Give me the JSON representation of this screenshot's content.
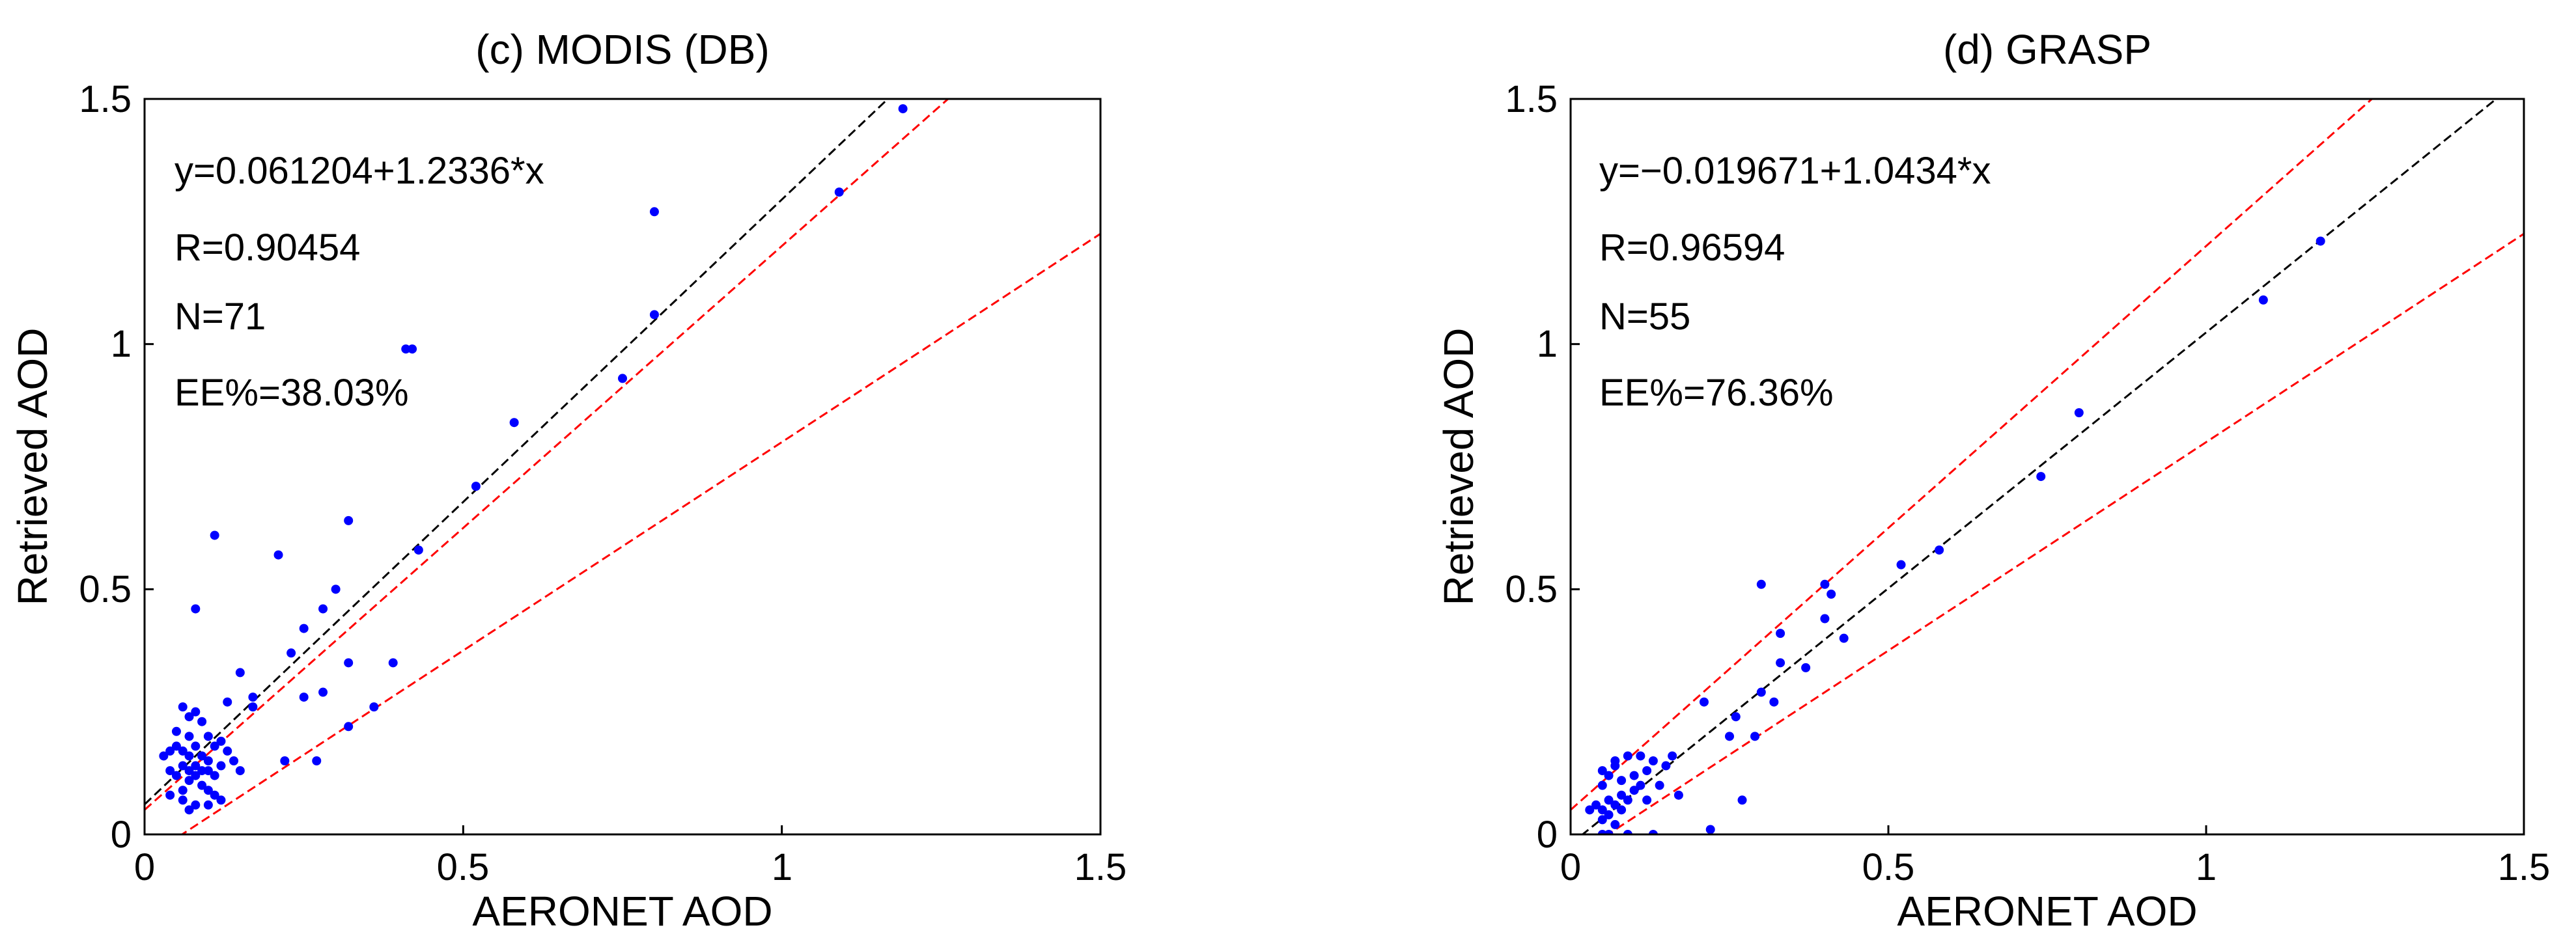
{
  "colors": {
    "points": "#0000ff",
    "fit_line": "#000000",
    "ee_lines": "#ff0000",
    "axes": "#000000",
    "background": "#ffffff"
  },
  "chart_data": [
    {
      "type": "scatter",
      "title": "(c) MODIS (DB)",
      "xlabel": "AERONET AOD",
      "ylabel": "Retrieved AOD",
      "xlim": [
        0,
        1.5
      ],
      "ylim": [
        0,
        1.5
      ],
      "xticks": [
        "0",
        "0.5",
        "1",
        "1.5"
      ],
      "yticks": [
        "0",
        "0.5",
        "1",
        "1.5"
      ],
      "annotations": [
        "y=0.061204+1.2336*x",
        "R=0.90454",
        "N=71",
        "EE%=38.03%"
      ],
      "fit": {
        "intercept": 0.061204,
        "slope": 1.2336
      },
      "ee_upper": {
        "intercept": 0.05,
        "slope": 1.15
      },
      "ee_lower": {
        "intercept": -0.05,
        "slope": 0.85
      },
      "points": [
        [
          1.19,
          1.48
        ],
        [
          1.09,
          1.31
        ],
        [
          0.8,
          1.27
        ],
        [
          0.8,
          1.06
        ],
        [
          0.41,
          0.99
        ],
        [
          0.42,
          0.99
        ],
        [
          0.75,
          0.93
        ],
        [
          0.58,
          0.84
        ],
        [
          0.52,
          0.71
        ],
        [
          0.11,
          0.61
        ],
        [
          0.32,
          0.64
        ],
        [
          0.21,
          0.57
        ],
        [
          0.43,
          0.58
        ],
        [
          0.3,
          0.5
        ],
        [
          0.28,
          0.46
        ],
        [
          0.25,
          0.42
        ],
        [
          0.08,
          0.46
        ],
        [
          0.23,
          0.37
        ],
        [
          0.32,
          0.35
        ],
        [
          0.39,
          0.35
        ],
        [
          0.15,
          0.33
        ],
        [
          0.17,
          0.28
        ],
        [
          0.17,
          0.26
        ],
        [
          0.28,
          0.29
        ],
        [
          0.25,
          0.28
        ],
        [
          0.36,
          0.26
        ],
        [
          0.32,
          0.22
        ],
        [
          0.13,
          0.27
        ],
        [
          0.06,
          0.26
        ],
        [
          0.08,
          0.25
        ],
        [
          0.07,
          0.24
        ],
        [
          0.09,
          0.23
        ],
        [
          0.05,
          0.21
        ],
        [
          0.07,
          0.2
        ],
        [
          0.1,
          0.2
        ],
        [
          0.12,
          0.19
        ],
        [
          0.05,
          0.18
        ],
        [
          0.08,
          0.18
        ],
        [
          0.11,
          0.18
        ],
        [
          0.13,
          0.17
        ],
        [
          0.04,
          0.17
        ],
        [
          0.06,
          0.17
        ],
        [
          0.07,
          0.16
        ],
        [
          0.09,
          0.16
        ],
        [
          0.03,
          0.16
        ],
        [
          0.1,
          0.15
        ],
        [
          0.14,
          0.15
        ],
        [
          0.22,
          0.15
        ],
        [
          0.27,
          0.15
        ],
        [
          0.06,
          0.14
        ],
        [
          0.08,
          0.14
        ],
        [
          0.12,
          0.14
        ],
        [
          0.04,
          0.13
        ],
        [
          0.07,
          0.13
        ],
        [
          0.09,
          0.13
        ],
        [
          0.1,
          0.13
        ],
        [
          0.15,
          0.13
        ],
        [
          0.05,
          0.12
        ],
        [
          0.08,
          0.12
        ],
        [
          0.11,
          0.12
        ],
        [
          0.07,
          0.11
        ],
        [
          0.09,
          0.1
        ],
        [
          0.1,
          0.09
        ],
        [
          0.06,
          0.09
        ],
        [
          0.11,
          0.08
        ],
        [
          0.04,
          0.08
        ],
        [
          0.12,
          0.07
        ],
        [
          0.06,
          0.07
        ],
        [
          0.08,
          0.06
        ],
        [
          0.1,
          0.06
        ],
        [
          0.07,
          0.05
        ]
      ]
    },
    {
      "type": "scatter",
      "title": "(d) GRASP",
      "xlabel": "AERONET AOD",
      "ylabel": "Retrieved AOD",
      "xlim": [
        0,
        1.5
      ],
      "ylim": [
        0,
        1.5
      ],
      "xticks": [
        "0",
        "0.5",
        "1",
        "1.5"
      ],
      "yticks": [
        "0",
        "0.5",
        "1",
        "1.5"
      ],
      "annotations": [
        "y=−0.019671+1.0434*x",
        "R=0.96594",
        "N=55",
        "EE%=76.36%"
      ],
      "fit": {
        "intercept": -0.019671,
        "slope": 1.0434
      },
      "ee_upper": {
        "intercept": 0.05,
        "slope": 1.15
      },
      "ee_lower": {
        "intercept": -0.05,
        "slope": 0.85
      },
      "points": [
        [
          1.18,
          1.21
        ],
        [
          1.09,
          1.09
        ],
        [
          0.8,
          0.86
        ],
        [
          0.74,
          0.73
        ],
        [
          0.58,
          0.58
        ],
        [
          0.52,
          0.55
        ],
        [
          0.4,
          0.51
        ],
        [
          0.41,
          0.49
        ],
        [
          0.3,
          0.51
        ],
        [
          0.33,
          0.41
        ],
        [
          0.4,
          0.44
        ],
        [
          0.43,
          0.4
        ],
        [
          0.33,
          0.35
        ],
        [
          0.37,
          0.34
        ],
        [
          0.3,
          0.29
        ],
        [
          0.32,
          0.27
        ],
        [
          0.21,
          0.27
        ],
        [
          0.26,
          0.24
        ],
        [
          0.29,
          0.2
        ],
        [
          0.25,
          0.2
        ],
        [
          0.16,
          0.16
        ],
        [
          0.09,
          0.16
        ],
        [
          0.11,
          0.16
        ],
        [
          0.13,
          0.15
        ],
        [
          0.07,
          0.15
        ],
        [
          0.07,
          0.14
        ],
        [
          0.15,
          0.14
        ],
        [
          0.05,
          0.13
        ],
        [
          0.12,
          0.13
        ],
        [
          0.1,
          0.12
        ],
        [
          0.06,
          0.12
        ],
        [
          0.08,
          0.11
        ],
        [
          0.11,
          0.1
        ],
        [
          0.14,
          0.1
        ],
        [
          0.05,
          0.1
        ],
        [
          0.1,
          0.09
        ],
        [
          0.08,
          0.08
        ],
        [
          0.17,
          0.08
        ],
        [
          0.09,
          0.07
        ],
        [
          0.12,
          0.07
        ],
        [
          0.06,
          0.07
        ],
        [
          0.04,
          0.06
        ],
        [
          0.07,
          0.06
        ],
        [
          0.03,
          0.05
        ],
        [
          0.05,
          0.05
        ],
        [
          0.08,
          0.05
        ],
        [
          0.27,
          0.07
        ],
        [
          0.06,
          0.04
        ],
        [
          0.05,
          0.03
        ],
        [
          0.07,
          0.02
        ],
        [
          0.22,
          0.01
        ],
        [
          0.05,
          0.0
        ],
        [
          0.06,
          0.0
        ],
        [
          0.09,
          0.0
        ],
        [
          0.13,
          0.0
        ]
      ]
    }
  ]
}
